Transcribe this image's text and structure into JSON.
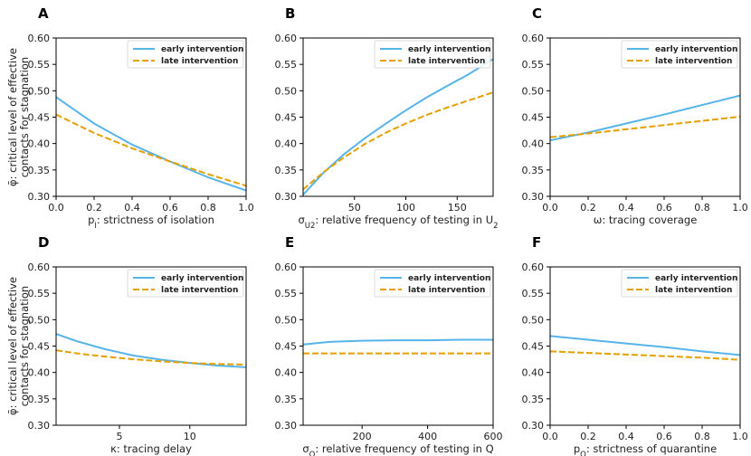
{
  "figure": {
    "ylabel_line1": "φ̄: critical level of effective",
    "ylabel_line2": "contacts for stagnation",
    "colors": {
      "early": "#56B4E9",
      "late": "#E69F00"
    }
  },
  "chart_data": [
    {
      "type": "line",
      "panel": "A",
      "xlabel": "p_I: strictness of isolation",
      "xlim": [
        0,
        1
      ],
      "ylim": [
        0.3,
        0.6
      ],
      "xticks": [
        0.0,
        0.2,
        0.4,
        0.6,
        0.8,
        1.0
      ],
      "xtick_labels": [
        "0.0",
        "0.2",
        "0.4",
        "0.6",
        "0.8",
        "1.0"
      ],
      "yticks": [
        0.3,
        0.35,
        0.4,
        0.45,
        0.5,
        0.55,
        0.6
      ],
      "ytick_labels": [
        "0.30",
        "0.35",
        "0.40",
        "0.45",
        "0.50",
        "0.55",
        "0.60"
      ],
      "x": [
        0.0,
        0.2,
        0.4,
        0.6,
        0.8,
        1.0
      ],
      "series": [
        {
          "name": "early intervention",
          "style": "solid",
          "values": [
            0.488,
            0.438,
            0.398,
            0.366,
            0.336,
            0.311
          ]
        },
        {
          "name": "late intervention",
          "style": "dashed",
          "values": [
            0.455,
            0.42,
            0.391,
            0.366,
            0.342,
            0.32
          ]
        }
      ]
    },
    {
      "type": "line",
      "panel": "B",
      "xlabel": "σ_U2: relative frequency of testing in U_2",
      "xlim": [
        0,
        185
      ],
      "ylim": [
        0.3,
        0.6
      ],
      "xticks": [
        50,
        100,
        150
      ],
      "xtick_labels": [
        "50",
        "100",
        "150"
      ],
      "yticks": [
        0.3,
        0.35,
        0.4,
        0.45,
        0.5,
        0.55,
        0.6
      ],
      "ytick_labels": [
        "0.30",
        "0.35",
        "0.40",
        "0.45",
        "0.50",
        "0.55",
        "0.60"
      ],
      "x": [
        0,
        20,
        40,
        60,
        80,
        100,
        120,
        140,
        160,
        185
      ],
      "series": [
        {
          "name": "early intervention",
          "style": "solid",
          "values": [
            0.303,
            0.345,
            0.38,
            0.41,
            0.437,
            0.463,
            0.487,
            0.509,
            0.53,
            0.56
          ]
        },
        {
          "name": "late intervention",
          "style": "dashed",
          "values": [
            0.313,
            0.346,
            0.374,
            0.399,
            0.42,
            0.438,
            0.454,
            0.468,
            0.481,
            0.497
          ]
        }
      ]
    },
    {
      "type": "line",
      "panel": "C",
      "xlabel": "ω: tracing coverage",
      "xlim": [
        0,
        1
      ],
      "ylim": [
        0.3,
        0.6
      ],
      "xticks": [
        0.0,
        0.2,
        0.4,
        0.6,
        0.8,
        1.0
      ],
      "xtick_labels": [
        "0.0",
        "0.2",
        "0.4",
        "0.6",
        "0.8",
        "1.0"
      ],
      "yticks": [
        0.3,
        0.35,
        0.4,
        0.45,
        0.5,
        0.55,
        0.6
      ],
      "ytick_labels": [
        "0.30",
        "0.35",
        "0.40",
        "0.45",
        "0.50",
        "0.55",
        "0.60"
      ],
      "x": [
        0.0,
        0.2,
        0.4,
        0.6,
        0.8,
        1.0
      ],
      "series": [
        {
          "name": "early intervention",
          "style": "solid",
          "values": [
            0.406,
            0.421,
            0.438,
            0.455,
            0.473,
            0.491
          ]
        },
        {
          "name": "late intervention",
          "style": "dashed",
          "values": [
            0.412,
            0.419,
            0.427,
            0.435,
            0.443,
            0.451
          ]
        }
      ]
    },
    {
      "type": "line",
      "panel": "D",
      "xlabel": "κ: tracing delay",
      "xlim": [
        0.5,
        14
      ],
      "ylim": [
        0.3,
        0.6
      ],
      "xticks": [
        5,
        10
      ],
      "xtick_labels": [
        "5",
        "10"
      ],
      "yticks": [
        0.3,
        0.35,
        0.4,
        0.45,
        0.5,
        0.55,
        0.6
      ],
      "ytick_labels": [
        "0.30",
        "0.35",
        "0.40",
        "0.45",
        "0.50",
        "0.55",
        "0.60"
      ],
      "x": [
        0.5,
        2,
        4,
        6,
        8,
        10,
        12,
        14
      ],
      "series": [
        {
          "name": "early intervention",
          "style": "solid",
          "values": [
            0.473,
            0.459,
            0.444,
            0.432,
            0.424,
            0.418,
            0.413,
            0.41
          ]
        },
        {
          "name": "late intervention",
          "style": "dashed",
          "values": [
            0.442,
            0.436,
            0.43,
            0.425,
            0.421,
            0.418,
            0.416,
            0.415
          ]
        }
      ]
    },
    {
      "type": "line",
      "panel": "E",
      "xlabel": "σ_Q: relative frequency of testing in Q",
      "xlim": [
        20,
        600
      ],
      "ylim": [
        0.3,
        0.6
      ],
      "xticks": [
        200,
        400,
        600
      ],
      "xtick_labels": [
        "200",
        "400",
        "600"
      ],
      "yticks": [
        0.3,
        0.35,
        0.4,
        0.45,
        0.5,
        0.55,
        0.6
      ],
      "ytick_labels": [
        "0.30",
        "0.35",
        "0.40",
        "0.45",
        "0.50",
        "0.55",
        "0.60"
      ],
      "x": [
        20,
        100,
        200,
        300,
        400,
        500,
        600
      ],
      "series": [
        {
          "name": "early intervention",
          "style": "solid",
          "values": [
            0.453,
            0.458,
            0.46,
            0.461,
            0.461,
            0.462,
            0.462
          ]
        },
        {
          "name": "late intervention",
          "style": "dashed",
          "values": [
            0.436,
            0.436,
            0.436,
            0.436,
            0.436,
            0.436,
            0.436
          ]
        }
      ]
    },
    {
      "type": "line",
      "panel": "F",
      "xlabel": "p_Q: strictness of quarantine",
      "xlim": [
        0,
        1
      ],
      "ylim": [
        0.3,
        0.6
      ],
      "xticks": [
        0.0,
        0.2,
        0.4,
        0.6,
        0.8,
        1.0
      ],
      "xtick_labels": [
        "0.0",
        "0.2",
        "0.4",
        "0.6",
        "0.8",
        "1.0"
      ],
      "yticks": [
        0.3,
        0.35,
        0.4,
        0.45,
        0.5,
        0.55,
        0.6
      ],
      "ytick_labels": [
        "0.30",
        "0.35",
        "0.40",
        "0.45",
        "0.50",
        "0.55",
        "0.60"
      ],
      "x": [
        0.0,
        0.2,
        0.4,
        0.6,
        0.8,
        1.0
      ],
      "series": [
        {
          "name": "early intervention",
          "style": "solid",
          "values": [
            0.469,
            0.462,
            0.455,
            0.448,
            0.44,
            0.433
          ]
        },
        {
          "name": "late intervention",
          "style": "dashed",
          "values": [
            0.44,
            0.437,
            0.434,
            0.431,
            0.428,
            0.424
          ]
        }
      ]
    }
  ]
}
